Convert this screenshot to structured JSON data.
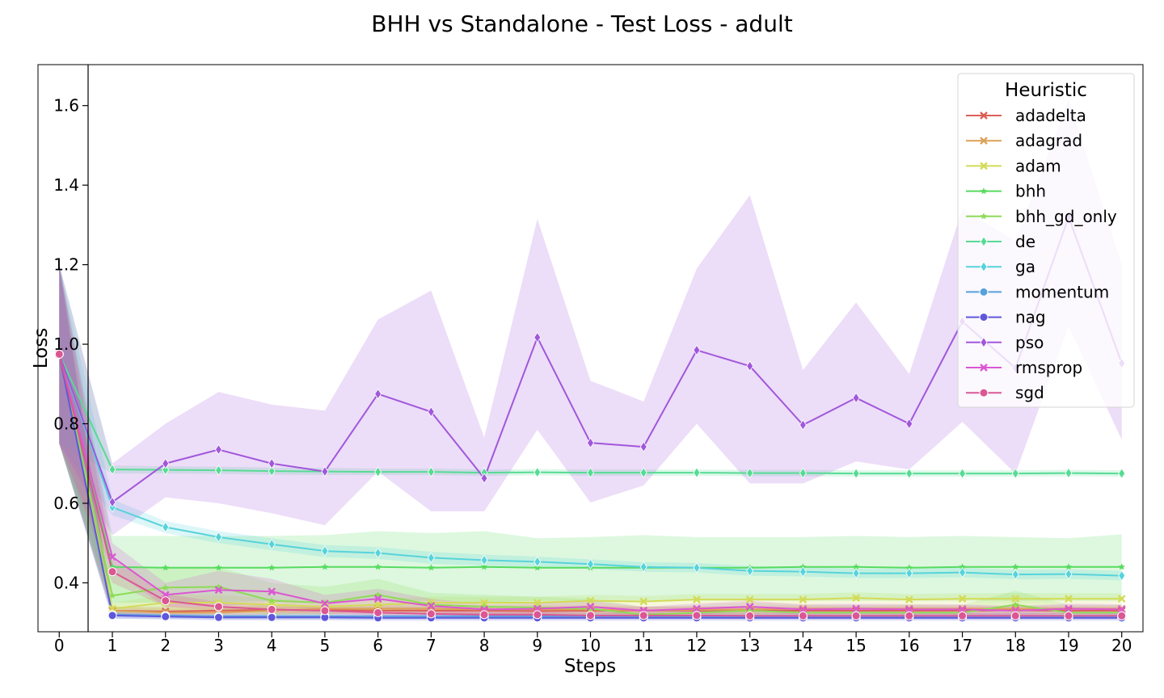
{
  "chart_data": {
    "type": "line",
    "title": "BHH vs Standalone - Test Loss - adult",
    "xlabel": "Steps",
    "ylabel": "Loss",
    "xlim": [
      -0.4,
      20.4
    ],
    "ylim": [
      0.277,
      1.703
    ],
    "x": [
      0,
      1,
      2,
      3,
      4,
      5,
      6,
      7,
      8,
      9,
      10,
      11,
      12,
      13,
      14,
      15,
      16,
      17,
      18,
      19,
      20
    ],
    "xticks": [
      "0",
      "1",
      "2",
      "3",
      "4",
      "5",
      "6",
      "7",
      "8",
      "9",
      "10",
      "11",
      "12",
      "13",
      "14",
      "15",
      "16",
      "17",
      "18",
      "19",
      "20"
    ],
    "yticks": [
      {
        "value": 0.4,
        "label": "0.4"
      },
      {
        "value": 0.6,
        "label": "0.6"
      },
      {
        "value": 0.8,
        "label": "0.8"
      },
      {
        "value": 1.0,
        "label": "1.0"
      },
      {
        "value": 1.2,
        "label": "1.2"
      },
      {
        "value": 1.4,
        "label": "1.4"
      },
      {
        "value": 1.6,
        "label": "1.6"
      }
    ],
    "legend": {
      "title": "Heuristic",
      "placement": "top-right"
    },
    "series": [
      {
        "name": "adadelta",
        "color": "#db5f57",
        "marker": "x",
        "values": [
          0.975,
          0.33,
          0.328,
          0.33,
          0.332,
          0.331,
          0.33,
          0.33,
          0.33,
          0.329,
          0.33,
          0.33,
          0.33,
          0.33,
          0.33,
          0.33,
          0.33,
          0.33,
          0.331,
          0.33,
          0.33
        ],
        "lower": [
          0.75,
          0.32,
          0.32,
          0.32,
          0.32,
          0.32,
          0.32,
          0.32,
          0.32,
          0.32,
          0.32,
          0.32,
          0.32,
          0.32,
          0.32,
          0.32,
          0.32,
          0.32,
          0.32,
          0.32,
          0.32
        ],
        "upper": [
          1.2,
          0.34,
          0.34,
          0.34,
          0.345,
          0.34,
          0.34,
          0.34,
          0.34,
          0.34,
          0.34,
          0.34,
          0.34,
          0.34,
          0.34,
          0.34,
          0.34,
          0.34,
          0.34,
          0.34,
          0.34
        ]
      },
      {
        "name": "adagrad",
        "color": "#dba157",
        "marker": "x",
        "values": [
          0.975,
          0.33,
          0.325,
          0.325,
          0.33,
          0.335,
          0.335,
          0.335,
          0.333,
          0.333,
          0.333,
          0.33,
          0.332,
          0.333,
          0.335,
          0.335,
          0.335,
          0.335,
          0.335,
          0.335,
          0.335
        ],
        "lower": [
          0.75,
          0.32,
          0.315,
          0.315,
          0.32,
          0.325,
          0.325,
          0.325,
          0.322,
          0.322,
          0.322,
          0.32,
          0.322,
          0.322,
          0.325,
          0.325,
          0.325,
          0.325,
          0.325,
          0.325,
          0.325
        ],
        "upper": [
          1.2,
          0.34,
          0.335,
          0.335,
          0.34,
          0.345,
          0.345,
          0.345,
          0.343,
          0.343,
          0.343,
          0.34,
          0.342,
          0.343,
          0.345,
          0.345,
          0.345,
          0.345,
          0.345,
          0.345,
          0.345
        ]
      },
      {
        "name": "adam",
        "color": "#d3db57",
        "marker": "x",
        "values": [
          0.975,
          0.335,
          0.35,
          0.35,
          0.345,
          0.34,
          0.345,
          0.35,
          0.35,
          0.35,
          0.355,
          0.353,
          0.358,
          0.358,
          0.358,
          0.362,
          0.358,
          0.36,
          0.36,
          0.36,
          0.36
        ],
        "lower": [
          0.75,
          0.32,
          0.33,
          0.33,
          0.33,
          0.33,
          0.33,
          0.335,
          0.335,
          0.335,
          0.34,
          0.34,
          0.345,
          0.345,
          0.345,
          0.348,
          0.345,
          0.347,
          0.347,
          0.347,
          0.347
        ],
        "upper": [
          1.2,
          0.35,
          0.37,
          0.37,
          0.36,
          0.355,
          0.36,
          0.365,
          0.365,
          0.365,
          0.37,
          0.367,
          0.372,
          0.372,
          0.372,
          0.376,
          0.372,
          0.374,
          0.374,
          0.374,
          0.374
        ]
      },
      {
        "name": "bhh",
        "color": "#57db5f",
        "marker": "star",
        "values": [
          0.975,
          0.44,
          0.438,
          0.438,
          0.438,
          0.44,
          0.44,
          0.438,
          0.44,
          0.438,
          0.438,
          0.438,
          0.438,
          0.438,
          0.44,
          0.44,
          0.438,
          0.44,
          0.44,
          0.44,
          0.44
        ],
        "lower": [
          0.75,
          0.35,
          0.35,
          0.35,
          0.355,
          0.355,
          0.355,
          0.355,
          0.35,
          0.355,
          0.355,
          0.355,
          0.355,
          0.355,
          0.355,
          0.355,
          0.355,
          0.355,
          0.355,
          0.355,
          0.355
        ],
        "upper": [
          1.2,
          0.518,
          0.518,
          0.518,
          0.518,
          0.52,
          0.53,
          0.525,
          0.53,
          0.512,
          0.515,
          0.52,
          0.515,
          0.515,
          0.515,
          0.518,
          0.515,
          0.518,
          0.515,
          0.512,
          0.522
        ]
      },
      {
        "name": "bhh_gd_only",
        "color": "#8ddb57",
        "marker": "star",
        "values": [
          0.975,
          0.368,
          0.388,
          0.39,
          0.355,
          0.35,
          0.37,
          0.345,
          0.34,
          0.338,
          0.335,
          0.32,
          0.325,
          0.33,
          0.325,
          0.325,
          0.325,
          0.325,
          0.345,
          0.325,
          0.325
        ],
        "lower": [
          0.75,
          0.33,
          0.33,
          0.33,
          0.32,
          0.32,
          0.33,
          0.32,
          0.32,
          0.32,
          0.32,
          0.31,
          0.315,
          0.318,
          0.315,
          0.315,
          0.315,
          0.315,
          0.32,
          0.315,
          0.315
        ],
        "upper": [
          1.2,
          0.44,
          0.44,
          0.44,
          0.4,
          0.39,
          0.41,
          0.375,
          0.37,
          0.365,
          0.36,
          0.34,
          0.345,
          0.35,
          0.345,
          0.345,
          0.345,
          0.345,
          0.38,
          0.345,
          0.345
        ]
      },
      {
        "name": "de",
        "color": "#57db94",
        "marker": "diamond",
        "values": [
          0.975,
          0.685,
          0.684,
          0.683,
          0.681,
          0.68,
          0.679,
          0.679,
          0.677,
          0.678,
          0.677,
          0.677,
          0.677,
          0.676,
          0.676,
          0.675,
          0.675,
          0.675,
          0.675,
          0.676,
          0.675
        ],
        "lower": [
          0.75,
          0.675,
          0.675,
          0.674,
          0.672,
          0.671,
          0.671,
          0.671,
          0.669,
          0.67,
          0.669,
          0.669,
          0.669,
          0.668,
          0.668,
          0.667,
          0.667,
          0.667,
          0.667,
          0.668,
          0.667
        ],
        "upper": [
          1.2,
          0.695,
          0.693,
          0.692,
          0.69,
          0.689,
          0.687,
          0.687,
          0.685,
          0.686,
          0.685,
          0.685,
          0.685,
          0.684,
          0.684,
          0.683,
          0.683,
          0.683,
          0.683,
          0.684,
          0.683
        ]
      },
      {
        "name": "ga",
        "color": "#57d3db",
        "marker": "diamond",
        "values": [
          0.975,
          0.59,
          0.54,
          0.515,
          0.497,
          0.48,
          0.475,
          0.463,
          0.457,
          0.453,
          0.447,
          0.44,
          0.438,
          0.43,
          0.428,
          0.424,
          0.424,
          0.426,
          0.421,
          0.422,
          0.418
        ],
        "lower": [
          0.75,
          0.57,
          0.525,
          0.5,
          0.482,
          0.465,
          0.46,
          0.448,
          0.443,
          0.44,
          0.435,
          0.428,
          0.426,
          0.418,
          0.416,
          0.412,
          0.412,
          0.414,
          0.409,
          0.41,
          0.406
        ],
        "upper": [
          1.2,
          0.61,
          0.555,
          0.53,
          0.512,
          0.495,
          0.49,
          0.478,
          0.471,
          0.466,
          0.459,
          0.452,
          0.45,
          0.442,
          0.44,
          0.436,
          0.436,
          0.438,
          0.433,
          0.434,
          0.43
        ]
      },
      {
        "name": "momentum",
        "color": "#57a1db",
        "marker": "circle",
        "values": [
          0.975,
          0.32,
          0.318,
          0.316,
          0.316,
          0.316,
          0.316,
          0.316,
          0.316,
          0.316,
          0.316,
          0.316,
          0.316,
          0.316,
          0.316,
          0.316,
          0.316,
          0.316,
          0.316,
          0.316,
          0.316
        ],
        "lower": [
          0.75,
          0.31,
          0.31,
          0.308,
          0.308,
          0.308,
          0.308,
          0.308,
          0.308,
          0.308,
          0.308,
          0.308,
          0.308,
          0.308,
          0.308,
          0.308,
          0.308,
          0.308,
          0.308,
          0.308,
          0.308
        ],
        "upper": [
          1.2,
          0.33,
          0.326,
          0.324,
          0.324,
          0.324,
          0.324,
          0.324,
          0.324,
          0.324,
          0.324,
          0.324,
          0.324,
          0.324,
          0.324,
          0.324,
          0.324,
          0.324,
          0.324,
          0.324,
          0.324
        ]
      },
      {
        "name": "nag",
        "color": "#5f57db",
        "marker": "circle",
        "values": [
          0.975,
          0.318,
          0.315,
          0.313,
          0.313,
          0.313,
          0.312,
          0.312,
          0.312,
          0.312,
          0.312,
          0.312,
          0.312,
          0.312,
          0.312,
          0.312,
          0.312,
          0.312,
          0.312,
          0.312,
          0.312
        ],
        "lower": [
          0.75,
          0.31,
          0.308,
          0.306,
          0.306,
          0.306,
          0.305,
          0.305,
          0.305,
          0.305,
          0.305,
          0.305,
          0.305,
          0.305,
          0.305,
          0.305,
          0.305,
          0.305,
          0.305,
          0.305,
          0.305
        ],
        "upper": [
          1.2,
          0.326,
          0.322,
          0.32,
          0.32,
          0.32,
          0.319,
          0.319,
          0.319,
          0.319,
          0.319,
          0.319,
          0.319,
          0.319,
          0.319,
          0.319,
          0.319,
          0.319,
          0.319,
          0.319,
          0.319
        ]
      },
      {
        "name": "pso",
        "color": "#a157db",
        "marker": "diamond",
        "values": [
          0.975,
          0.603,
          0.7,
          0.735,
          0.7,
          0.68,
          0.875,
          0.83,
          0.663,
          1.017,
          0.752,
          0.742,
          0.985,
          0.945,
          0.797,
          0.865,
          0.8,
          1.057,
          0.94,
          1.32,
          0.952
        ],
        "lower": [
          0.75,
          0.52,
          0.615,
          0.6,
          0.575,
          0.545,
          0.68,
          0.58,
          0.58,
          0.785,
          0.602,
          0.645,
          0.8,
          0.65,
          0.65,
          0.705,
          0.685,
          0.805,
          0.675,
          1.045,
          0.76
        ],
        "upper": [
          1.2,
          0.7,
          0.8,
          0.88,
          0.848,
          0.833,
          1.062,
          1.135,
          0.765,
          1.315,
          0.908,
          0.856,
          1.19,
          1.375,
          0.935,
          1.105,
          0.925,
          1.34,
          1.26,
          1.615,
          1.2
        ]
      },
      {
        "name": "rmsprop",
        "color": "#db57d3",
        "marker": "x",
        "values": [
          0.975,
          0.465,
          0.37,
          0.382,
          0.378,
          0.348,
          0.36,
          0.342,
          0.333,
          0.335,
          0.34,
          0.33,
          0.335,
          0.34,
          0.333,
          0.335,
          0.333,
          0.333,
          0.33,
          0.335,
          0.333
        ],
        "lower": [
          0.75,
          0.43,
          0.34,
          0.34,
          0.35,
          0.33,
          0.335,
          0.325,
          0.32,
          0.322,
          0.325,
          0.32,
          0.322,
          0.325,
          0.32,
          0.322,
          0.32,
          0.32,
          0.32,
          0.322,
          0.32
        ],
        "upper": [
          1.2,
          0.5,
          0.4,
          0.43,
          0.41,
          0.37,
          0.385,
          0.36,
          0.346,
          0.348,
          0.355,
          0.34,
          0.348,
          0.355,
          0.346,
          0.348,
          0.346,
          0.346,
          0.34,
          0.348,
          0.346
        ]
      },
      {
        "name": "sgd",
        "color": "#db5794",
        "marker": "circle",
        "values": [
          0.975,
          0.428,
          0.355,
          0.34,
          0.333,
          0.33,
          0.325,
          0.322,
          0.32,
          0.32,
          0.318,
          0.318,
          0.318,
          0.317,
          0.317,
          0.317,
          0.317,
          0.317,
          0.317,
          0.317,
          0.317
        ],
        "lower": [
          0.75,
          0.4,
          0.34,
          0.33,
          0.325,
          0.322,
          0.318,
          0.315,
          0.313,
          0.313,
          0.311,
          0.311,
          0.311,
          0.31,
          0.31,
          0.31,
          0.31,
          0.31,
          0.31,
          0.31,
          0.31
        ],
        "upper": [
          1.2,
          0.46,
          0.372,
          0.352,
          0.342,
          0.338,
          0.332,
          0.33,
          0.327,
          0.327,
          0.325,
          0.325,
          0.325,
          0.324,
          0.324,
          0.324,
          0.324,
          0.324,
          0.324,
          0.324,
          0.324
        ]
      }
    ]
  }
}
